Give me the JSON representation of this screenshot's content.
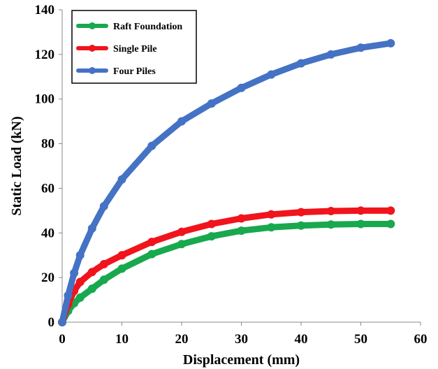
{
  "chart_data": {
    "type": "line",
    "title": "",
    "xlabel": "Displacement (mm)",
    "ylabel": "Static Load (kN)",
    "xlim": [
      0,
      60
    ],
    "ylim": [
      0,
      140
    ],
    "xticks": [
      0,
      10,
      20,
      30,
      40,
      50,
      60
    ],
    "yticks": [
      0,
      20,
      40,
      60,
      80,
      100,
      120,
      140
    ],
    "grid": false,
    "legend_position": "top-left",
    "series": [
      {
        "name": "Raft Foundation",
        "color": "#18a84e",
        "x": [
          0,
          1,
          2,
          3,
          5,
          7,
          10,
          15,
          20,
          25,
          30,
          35,
          40,
          45,
          50,
          55
        ],
        "y": [
          0,
          5,
          8.5,
          11,
          15,
          19,
          24,
          30.5,
          35,
          38.5,
          41,
          42.5,
          43.3,
          43.8,
          44,
          44
        ]
      },
      {
        "name": "Single Pile",
        "color": "#f0141c",
        "x": [
          0,
          1,
          2,
          3,
          5,
          7,
          10,
          15,
          20,
          25,
          30,
          35,
          40,
          45,
          50,
          55
        ],
        "y": [
          0,
          8,
          14,
          18,
          22.5,
          26,
          30,
          36,
          40.5,
          44,
          46.5,
          48.3,
          49.3,
          49.8,
          50,
          50
        ]
      },
      {
        "name": "Four Piles",
        "color": "#4472c4",
        "x": [
          0,
          1,
          2,
          3,
          5,
          7,
          10,
          15,
          20,
          25,
          30,
          35,
          40,
          45,
          50,
          55
        ],
        "y": [
          0,
          12,
          22,
          30,
          42,
          52,
          64,
          79,
          90,
          98,
          105,
          111,
          116,
          120,
          123,
          125
        ]
      }
    ]
  }
}
